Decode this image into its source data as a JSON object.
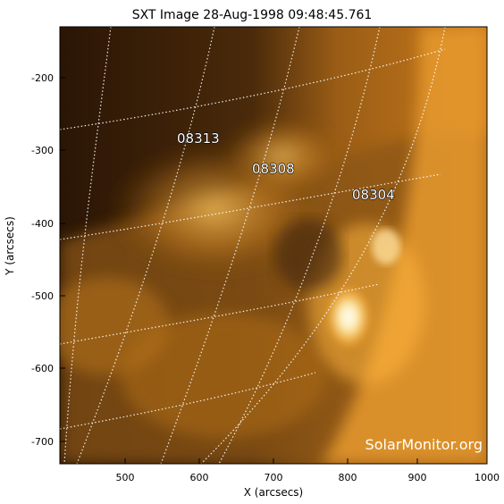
{
  "title": "SXT Image 28-Aug-1998 09:48:45.761",
  "xlabel": "X (arcsecs)",
  "ylabel": "Y (arcsecs)",
  "x_ticks": [
    "500",
    "600",
    "700",
    "800",
    "900",
    "1000"
  ],
  "y_ticks": [
    "-200",
    "-300",
    "-400",
    "-500",
    "-600",
    "-700"
  ],
  "regions": [
    {
      "id": "08313"
    },
    {
      "id": "08308"
    },
    {
      "id": "08304"
    }
  ],
  "watermark": "SolarMonitor.org",
  "colors": {
    "background_dark": "#2a1505",
    "background_mid": "#7a4a12",
    "corona_bright": "#ffd27a",
    "flare_core": "#ffffff",
    "grid_line": "#ffffff"
  }
}
